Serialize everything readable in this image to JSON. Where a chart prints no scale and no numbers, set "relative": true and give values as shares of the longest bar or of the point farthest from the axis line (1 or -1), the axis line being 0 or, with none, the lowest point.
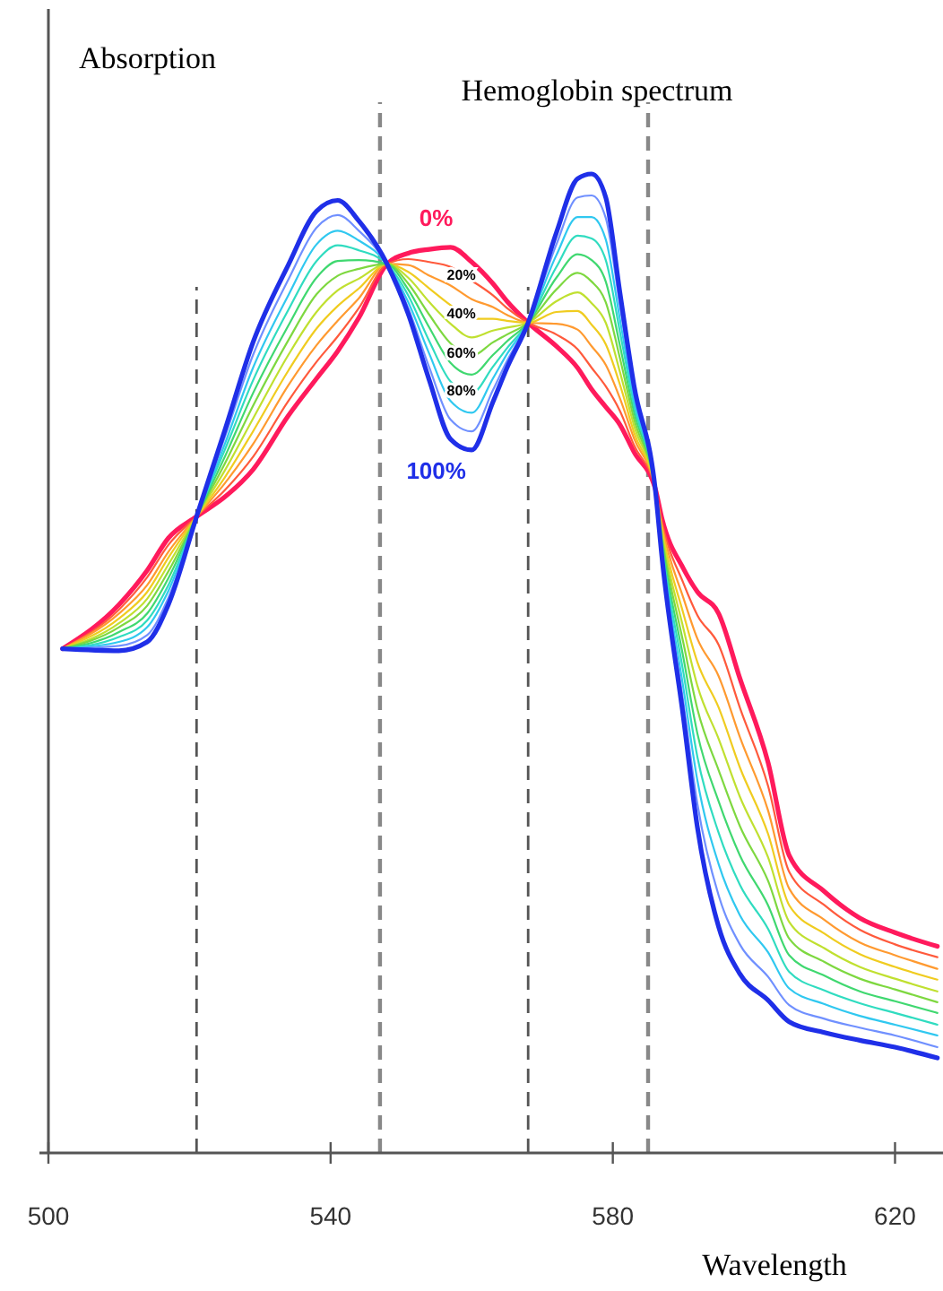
{
  "chart_data": {
    "type": "line",
    "title": "Hemoglobin spectrum",
    "xlabel": "Wavelength",
    "ylabel": "Absorption",
    "relative": true,
    "xlim": [
      500,
      626.8
    ],
    "xticks": [
      500,
      540,
      580,
      620
    ],
    "x": [
      502,
      510,
      514,
      517,
      521,
      525,
      529,
      534,
      538,
      541,
      544,
      548,
      551,
      554,
      557,
      560,
      563,
      565,
      568,
      572,
      575,
      577,
      579,
      581,
      583,
      586,
      587,
      590,
      592,
      595,
      598,
      602,
      605,
      610,
      615,
      620,
      626
    ],
    "ref_lines": [
      {
        "axis": "x",
        "value": 521,
        "color": "#555555"
      },
      {
        "axis": "x",
        "value": 547,
        "color": "#888888"
      },
      {
        "axis": "x",
        "value": 568,
        "color": "#555555"
      },
      {
        "axis": "x",
        "value": 585,
        "color": "#888888"
      }
    ],
    "series": [
      {
        "name": "0%",
        "color": "#ff1a5c",
        "values": [
          0.515,
          0.56,
          0.595,
          0.628,
          0.65,
          0.67,
          0.698,
          0.753,
          0.791,
          0.819,
          0.853,
          0.908,
          0.919,
          0.923,
          0.925,
          0.91,
          0.888,
          0.87,
          0.848,
          0.824,
          0.802,
          0.78,
          0.762,
          0.744,
          0.716,
          0.679,
          0.647,
          0.597,
          0.573,
          0.551,
          0.485,
          0.399,
          0.304,
          0.267,
          0.24,
          0.225,
          0.211
        ]
      },
      {
        "color": "#ff5a3c",
        "values": [
          0.515,
          0.555,
          0.588,
          0.621,
          0.65,
          0.677,
          0.711,
          0.768,
          0.808,
          0.834,
          0.863,
          0.908,
          0.913,
          0.91,
          0.905,
          0.891,
          0.876,
          0.863,
          0.848,
          0.836,
          0.821,
          0.802,
          0.783,
          0.758,
          0.723,
          0.679,
          0.643,
          0.582,
          0.549,
          0.519,
          0.455,
          0.375,
          0.287,
          0.253,
          0.228,
          0.213,
          0.2
        ]
      },
      {
        "name": "20%",
        "color": "#ff9a30",
        "values": [
          0.515,
          0.551,
          0.58,
          0.614,
          0.65,
          0.684,
          0.724,
          0.784,
          0.825,
          0.85,
          0.873,
          0.908,
          0.907,
          0.896,
          0.886,
          0.872,
          0.864,
          0.856,
          0.848,
          0.847,
          0.841,
          0.824,
          0.805,
          0.771,
          0.73,
          0.679,
          0.639,
          0.567,
          0.525,
          0.487,
          0.425,
          0.35,
          0.27,
          0.238,
          0.215,
          0.202,
          0.188
        ]
      },
      {
        "color": "#f0cc20",
        "values": [
          0.515,
          0.546,
          0.573,
          0.608,
          0.65,
          0.69,
          0.737,
          0.799,
          0.842,
          0.865,
          0.883,
          0.908,
          0.9,
          0.883,
          0.866,
          0.852,
          0.852,
          0.85,
          0.848,
          0.859,
          0.86,
          0.846,
          0.826,
          0.785,
          0.736,
          0.679,
          0.635,
          0.551,
          0.501,
          0.455,
          0.394,
          0.326,
          0.253,
          0.224,
          0.203,
          0.19,
          0.177
        ]
      },
      {
        "name": "40%",
        "color": "#c0e030",
        "values": [
          0.515,
          0.541,
          0.566,
          0.601,
          0.65,
          0.697,
          0.75,
          0.815,
          0.859,
          0.881,
          0.893,
          0.908,
          0.894,
          0.869,
          0.847,
          0.833,
          0.84,
          0.843,
          0.848,
          0.87,
          0.879,
          0.868,
          0.848,
          0.798,
          0.743,
          0.679,
          0.631,
          0.536,
          0.477,
          0.423,
          0.364,
          0.302,
          0.236,
          0.209,
          0.19,
          0.178,
          0.165
        ]
      },
      {
        "color": "#7ed840",
        "values": [
          0.515,
          0.537,
          0.559,
          0.594,
          0.65,
          0.704,
          0.763,
          0.83,
          0.877,
          0.896,
          0.903,
          0.908,
          0.888,
          0.856,
          0.827,
          0.814,
          0.828,
          0.836,
          0.848,
          0.882,
          0.899,
          0.89,
          0.869,
          0.812,
          0.75,
          0.679,
          0.627,
          0.521,
          0.453,
          0.391,
          0.334,
          0.278,
          0.219,
          0.195,
          0.178,
          0.167,
          0.154
        ]
      },
      {
        "name": "60%",
        "color": "#40d870",
        "values": [
          0.515,
          0.532,
          0.551,
          0.587,
          0.65,
          0.711,
          0.776,
          0.845,
          0.894,
          0.911,
          0.912,
          0.908,
          0.882,
          0.843,
          0.807,
          0.795,
          0.815,
          0.829,
          0.848,
          0.894,
          0.918,
          0.912,
          0.89,
          0.825,
          0.757,
          0.679,
          0.622,
          0.506,
          0.428,
          0.359,
          0.304,
          0.253,
          0.202,
          0.181,
          0.165,
          0.155,
          0.143
        ]
      },
      {
        "color": "#30dcc0",
        "values": [
          0.515,
          0.527,
          0.544,
          0.58,
          0.65,
          0.718,
          0.789,
          0.861,
          0.911,
          0.927,
          0.922,
          0.908,
          0.876,
          0.829,
          0.788,
          0.776,
          0.803,
          0.822,
          0.848,
          0.905,
          0.937,
          0.934,
          0.912,
          0.839,
          0.764,
          0.679,
          0.618,
          0.491,
          0.404,
          0.327,
          0.274,
          0.229,
          0.185,
          0.166,
          0.153,
          0.143,
          0.131
        ]
      },
      {
        "name": "80%",
        "color": "#30c8f0",
        "values": [
          0.515,
          0.522,
          0.537,
          0.574,
          0.65,
          0.724,
          0.802,
          0.876,
          0.928,
          0.942,
          0.932,
          0.908,
          0.869,
          0.816,
          0.768,
          0.756,
          0.791,
          0.816,
          0.848,
          0.917,
          0.956,
          0.956,
          0.933,
          0.852,
          0.77,
          0.679,
          0.614,
          0.475,
          0.38,
          0.295,
          0.243,
          0.205,
          0.168,
          0.152,
          0.14,
          0.131,
          0.12
        ]
      },
      {
        "color": "#7090ff",
        "values": [
          0.515,
          0.518,
          0.529,
          0.567,
          0.65,
          0.731,
          0.815,
          0.892,
          0.945,
          0.958,
          0.942,
          0.908,
          0.863,
          0.802,
          0.749,
          0.737,
          0.779,
          0.809,
          0.848,
          0.928,
          0.976,
          0.978,
          0.955,
          0.866,
          0.777,
          0.679,
          0.61,
          0.46,
          0.356,
          0.263,
          0.213,
          0.18,
          0.151,
          0.137,
          0.128,
          0.12,
          0.108
        ]
      },
      {
        "name": "100%",
        "color": "#1f2fe8",
        "values": [
          0.515,
          0.513,
          0.522,
          0.56,
          0.65,
          0.738,
          0.828,
          0.907,
          0.962,
          0.973,
          0.952,
          0.908,
          0.857,
          0.789,
          0.729,
          0.718,
          0.767,
          0.802,
          0.848,
          0.94,
          0.995,
          1.0,
          0.976,
          0.879,
          0.784,
          0.679,
          0.606,
          0.445,
          0.332,
          0.231,
          0.183,
          0.156,
          0.134,
          0.123,
          0.115,
          0.108,
          0.097
        ]
      }
    ]
  }
}
